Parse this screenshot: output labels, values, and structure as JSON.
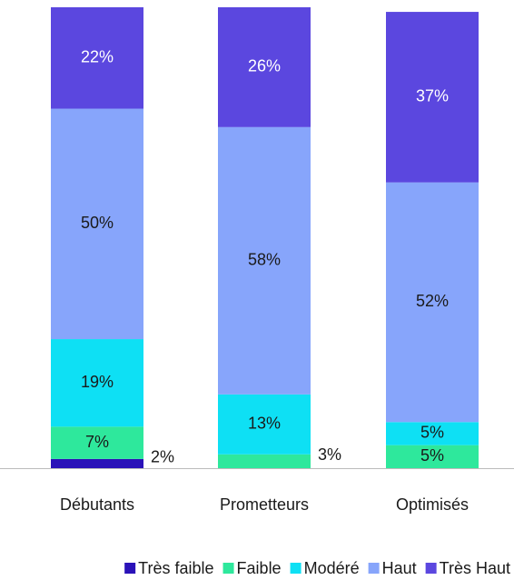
{
  "chart_data": {
    "type": "stacked_bar",
    "categories": [
      "Débutants",
      "Prometteurs",
      "Optimisés"
    ],
    "ylim": [
      0,
      100
    ],
    "legend": "bottom",
    "series": [
      {
        "name": "Très faible",
        "color": "#2a12b8",
        "values": [
          2,
          null,
          null
        ],
        "value_labels": [
          "2%",
          null,
          null
        ]
      },
      {
        "name": "Faible",
        "color": "#2ee89c",
        "values": [
          7,
          3,
          5
        ],
        "value_labels": [
          "7%",
          "3%",
          "5%"
        ]
      },
      {
        "name": "Modéré",
        "color": "#0ee0f4",
        "values": [
          19,
          13,
          5
        ],
        "value_labels": [
          "19%",
          "13%",
          "5%"
        ]
      },
      {
        "name": "Haut",
        "color": "#87a5fb",
        "values": [
          50,
          58,
          52
        ],
        "value_labels": [
          "50%",
          "58%",
          "52%"
        ]
      },
      {
        "name": "Très Haut",
        "color": "#5b47df",
        "values": [
          22,
          26,
          37
        ],
        "value_labels": [
          "22%",
          "26%",
          "37%"
        ]
      }
    ]
  }
}
